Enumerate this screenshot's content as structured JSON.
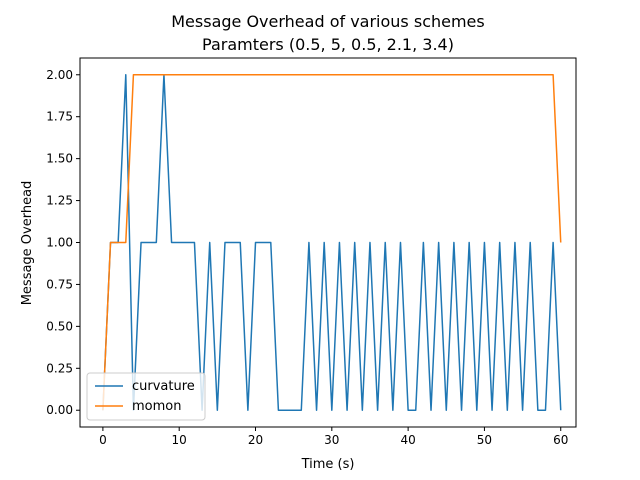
{
  "chart_data": {
    "type": "line",
    "title": "Message Overhead of various schemes",
    "subtitle": "Paramters (0.5, 5, 0.5, 2.1, 3.4)",
    "xlabel": "Time (s)",
    "ylabel": "Message Overhead",
    "xlim": [
      -3,
      62
    ],
    "ylim": [
      -0.1,
      2.1
    ],
    "xticks": [
      0,
      10,
      20,
      30,
      40,
      50,
      60
    ],
    "yticks": [
      0.0,
      0.25,
      0.5,
      0.75,
      1.0,
      1.25,
      1.5,
      1.75,
      2.0
    ],
    "ytick_labels": [
      "0.00",
      "0.25",
      "0.50",
      "0.75",
      "1.00",
      "1.25",
      "1.50",
      "1.75",
      "2.00"
    ],
    "grid": false,
    "legend_position": "lower-left",
    "series": [
      {
        "name": "curvature",
        "color": "#1f77b4",
        "x": [
          0,
          1,
          2,
          3,
          4,
          5,
          6,
          7,
          8,
          9,
          10,
          11,
          12,
          13,
          14,
          15,
          16,
          17,
          18,
          19,
          20,
          21,
          22,
          23,
          24,
          25,
          26,
          27,
          28,
          29,
          30,
          31,
          32,
          33,
          34,
          35,
          36,
          37,
          38,
          39,
          40,
          41,
          42,
          43,
          44,
          45,
          46,
          47,
          48,
          49,
          50,
          51,
          52,
          53,
          54,
          55,
          56,
          57,
          58,
          59,
          60
        ],
        "y": [
          0,
          1,
          1,
          2,
          0,
          1,
          1,
          1,
          2,
          1,
          1,
          1,
          1,
          0,
          1,
          0,
          1,
          1,
          1,
          0,
          1,
          1,
          1,
          0,
          0,
          0,
          0,
          1,
          0,
          1,
          0,
          1,
          0,
          1,
          0,
          1,
          0,
          1,
          0,
          1,
          0,
          0,
          1,
          0,
          1,
          0,
          1,
          0,
          1,
          0,
          1,
          0,
          1,
          0,
          1,
          0,
          1,
          0,
          0,
          1,
          0
        ]
      },
      {
        "name": "momon",
        "color": "#ff7f0e",
        "x": [
          0,
          1,
          2,
          3,
          4,
          59,
          60
        ],
        "y": [
          0,
          1,
          1,
          1,
          2,
          2,
          1
        ]
      }
    ]
  }
}
